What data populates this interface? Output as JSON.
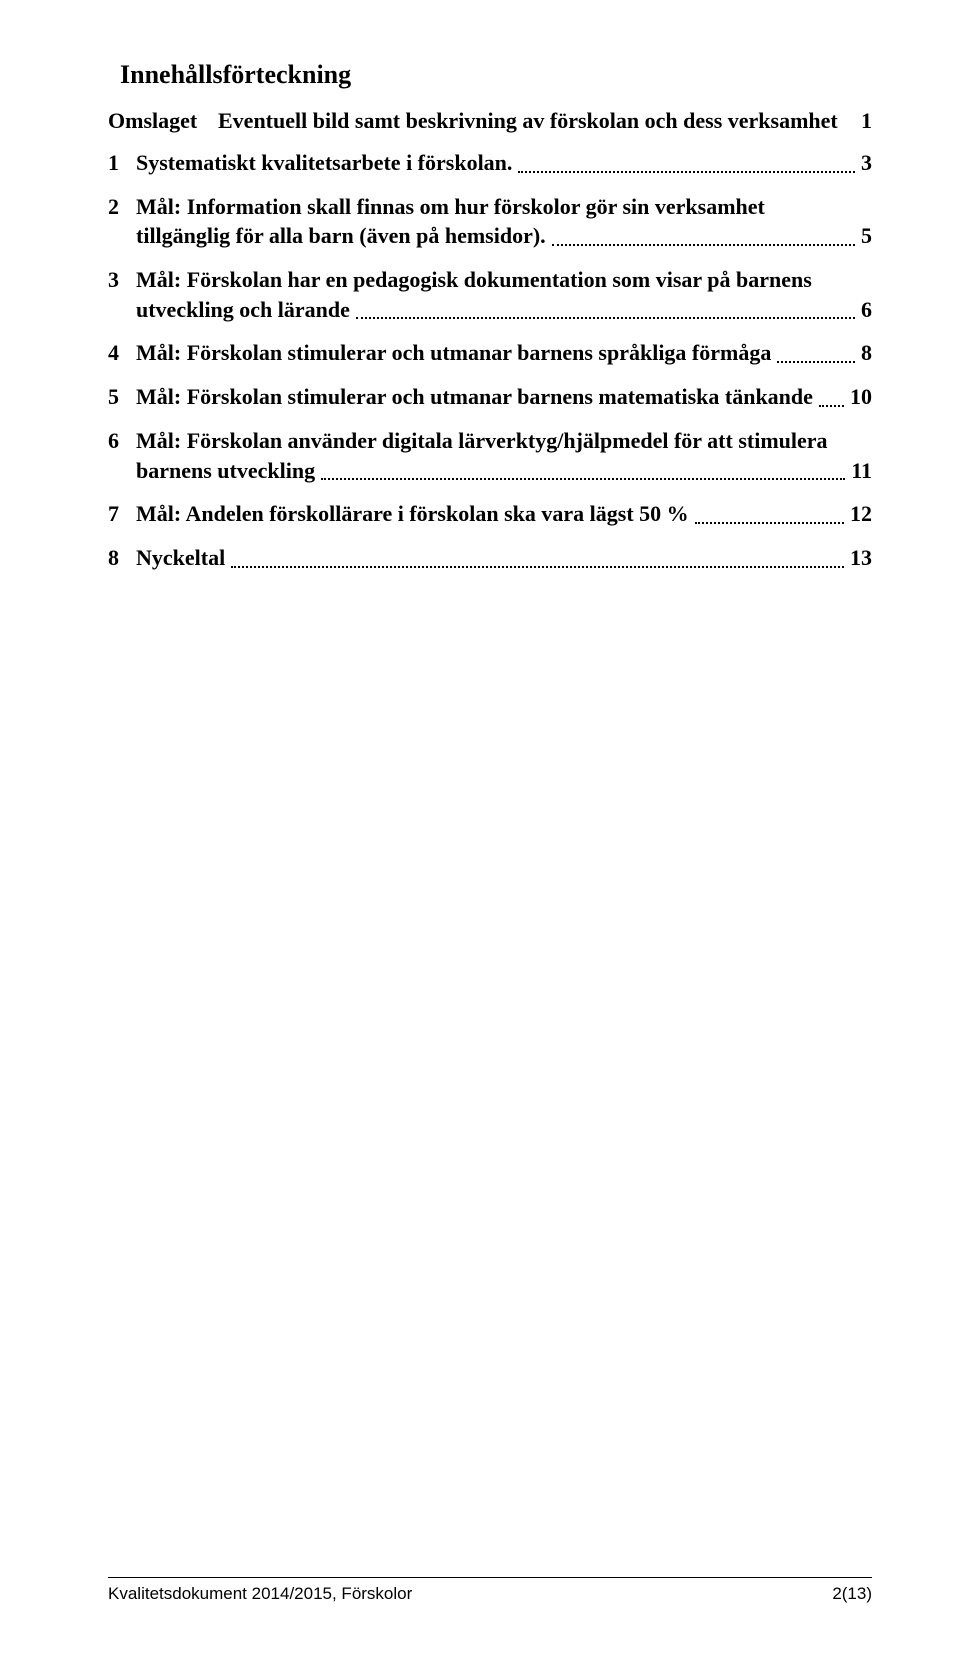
{
  "toc": {
    "title": "Innehållsförteckning",
    "omslaget": {
      "label": "Omslaget",
      "text": "Eventuell bild samt beskrivning av förskolan och dess verksamhet",
      "page": "1"
    },
    "entries": [
      {
        "num": "1",
        "text": "Systematiskt kvalitetsarbete i förskolan.",
        "page": "3"
      },
      {
        "num": "2",
        "line1": "Mål: Information skall finnas om hur förskolor gör sin verksamhet",
        "line2": "tillgänglig för alla barn (även på hemsidor).",
        "page": "5"
      },
      {
        "num": "3",
        "line1": "Mål: Förskolan har en pedagogisk dokumentation som visar på barnens",
        "line2": "utveckling och lärande",
        "page": "6"
      },
      {
        "num": "4",
        "text": "Mål: Förskolan stimulerar och utmanar barnens språkliga förmåga",
        "page": "8"
      },
      {
        "num": "5",
        "text": "Mål: Förskolan stimulerar och utmanar barnens matematiska tänkande",
        "page": "10"
      },
      {
        "num": "6",
        "line1": "Mål: Förskolan använder digitala lärverktyg/hjälpmedel för att stimulera",
        "line2": "barnens utveckling",
        "page": "11"
      },
      {
        "num": "7",
        "text": "Mål: Andelen förskollärare i förskolan ska vara lägst 50 %",
        "page": "12"
      },
      {
        "num": "8",
        "text": "Nyckeltal",
        "page": "13"
      }
    ]
  },
  "footer": {
    "left": "Kvalitetsdokument 2014/2015, Förskolor",
    "right": "2(13)"
  }
}
